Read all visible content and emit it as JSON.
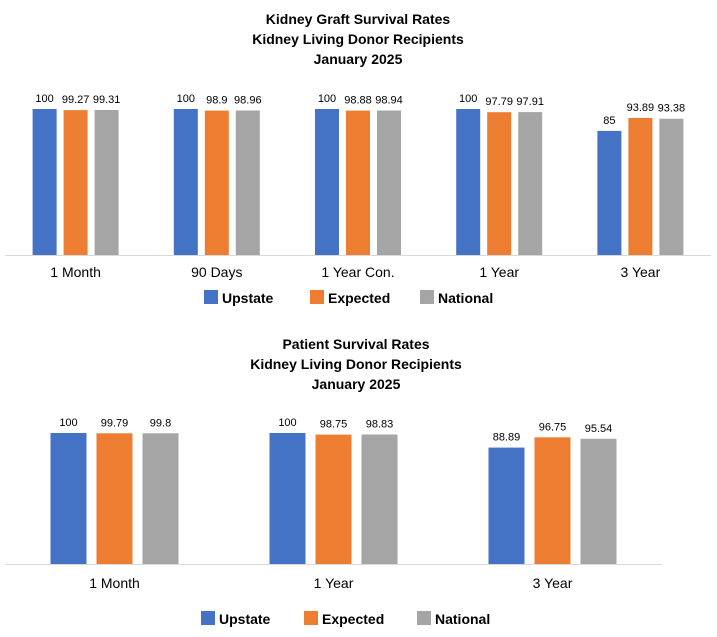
{
  "chart_data": [
    {
      "type": "bar",
      "title": "Kidney Graft Survival Rates",
      "subtitle": "Kidney Living Donor Recipients",
      "date": "January 2025",
      "categories": [
        "1 Month",
        "90 Days",
        "1 Year Con.",
        "1 Year",
        "3 Year"
      ],
      "series": [
        {
          "name": "Upstate",
          "color": "#4472C4",
          "values": [
            100,
            100,
            100,
            100,
            85
          ],
          "labels": [
            "100",
            "100",
            "100",
            "100",
            "85"
          ]
        },
        {
          "name": "Expected",
          "color": "#ED7D31",
          "values": [
            99.27,
            98.9,
            98.88,
            97.79,
            93.89
          ],
          "labels": [
            "99.27",
            "98.9",
            "98.88",
            "97.79",
            "93.89"
          ]
        },
        {
          "name": "National",
          "color": "#A5A5A5",
          "values": [
            99.31,
            98.96,
            98.94,
            97.91,
            93.38
          ],
          "labels": [
            "99.31",
            "98.96",
            "98.94",
            "97.91",
            "93.38"
          ]
        }
      ],
      "ylim": [
        0,
        100
      ],
      "legend": "bottom"
    },
    {
      "type": "bar",
      "title": "Patient Survival Rates",
      "subtitle": "Kidney Living Donor Recipients",
      "date": "January 2025",
      "categories": [
        "1 Month",
        "1 Year",
        "3 Year"
      ],
      "series": [
        {
          "name": "Upstate",
          "color": "#4472C4",
          "values": [
            100,
            100,
            88.89
          ],
          "labels": [
            "100",
            "100",
            "88.89"
          ]
        },
        {
          "name": "Expected",
          "color": "#ED7D31",
          "values": [
            99.79,
            98.75,
            96.75
          ],
          "labels": [
            "99.79",
            "98.75",
            "96.75"
          ]
        },
        {
          "name": "National",
          "color": "#A5A5A5",
          "values": [
            99.8,
            98.83,
            95.54
          ],
          "labels": [
            "99.8",
            "98.83",
            "95.54"
          ]
        }
      ],
      "ylim": [
        0,
        100
      ],
      "legend": "bottom"
    }
  ]
}
